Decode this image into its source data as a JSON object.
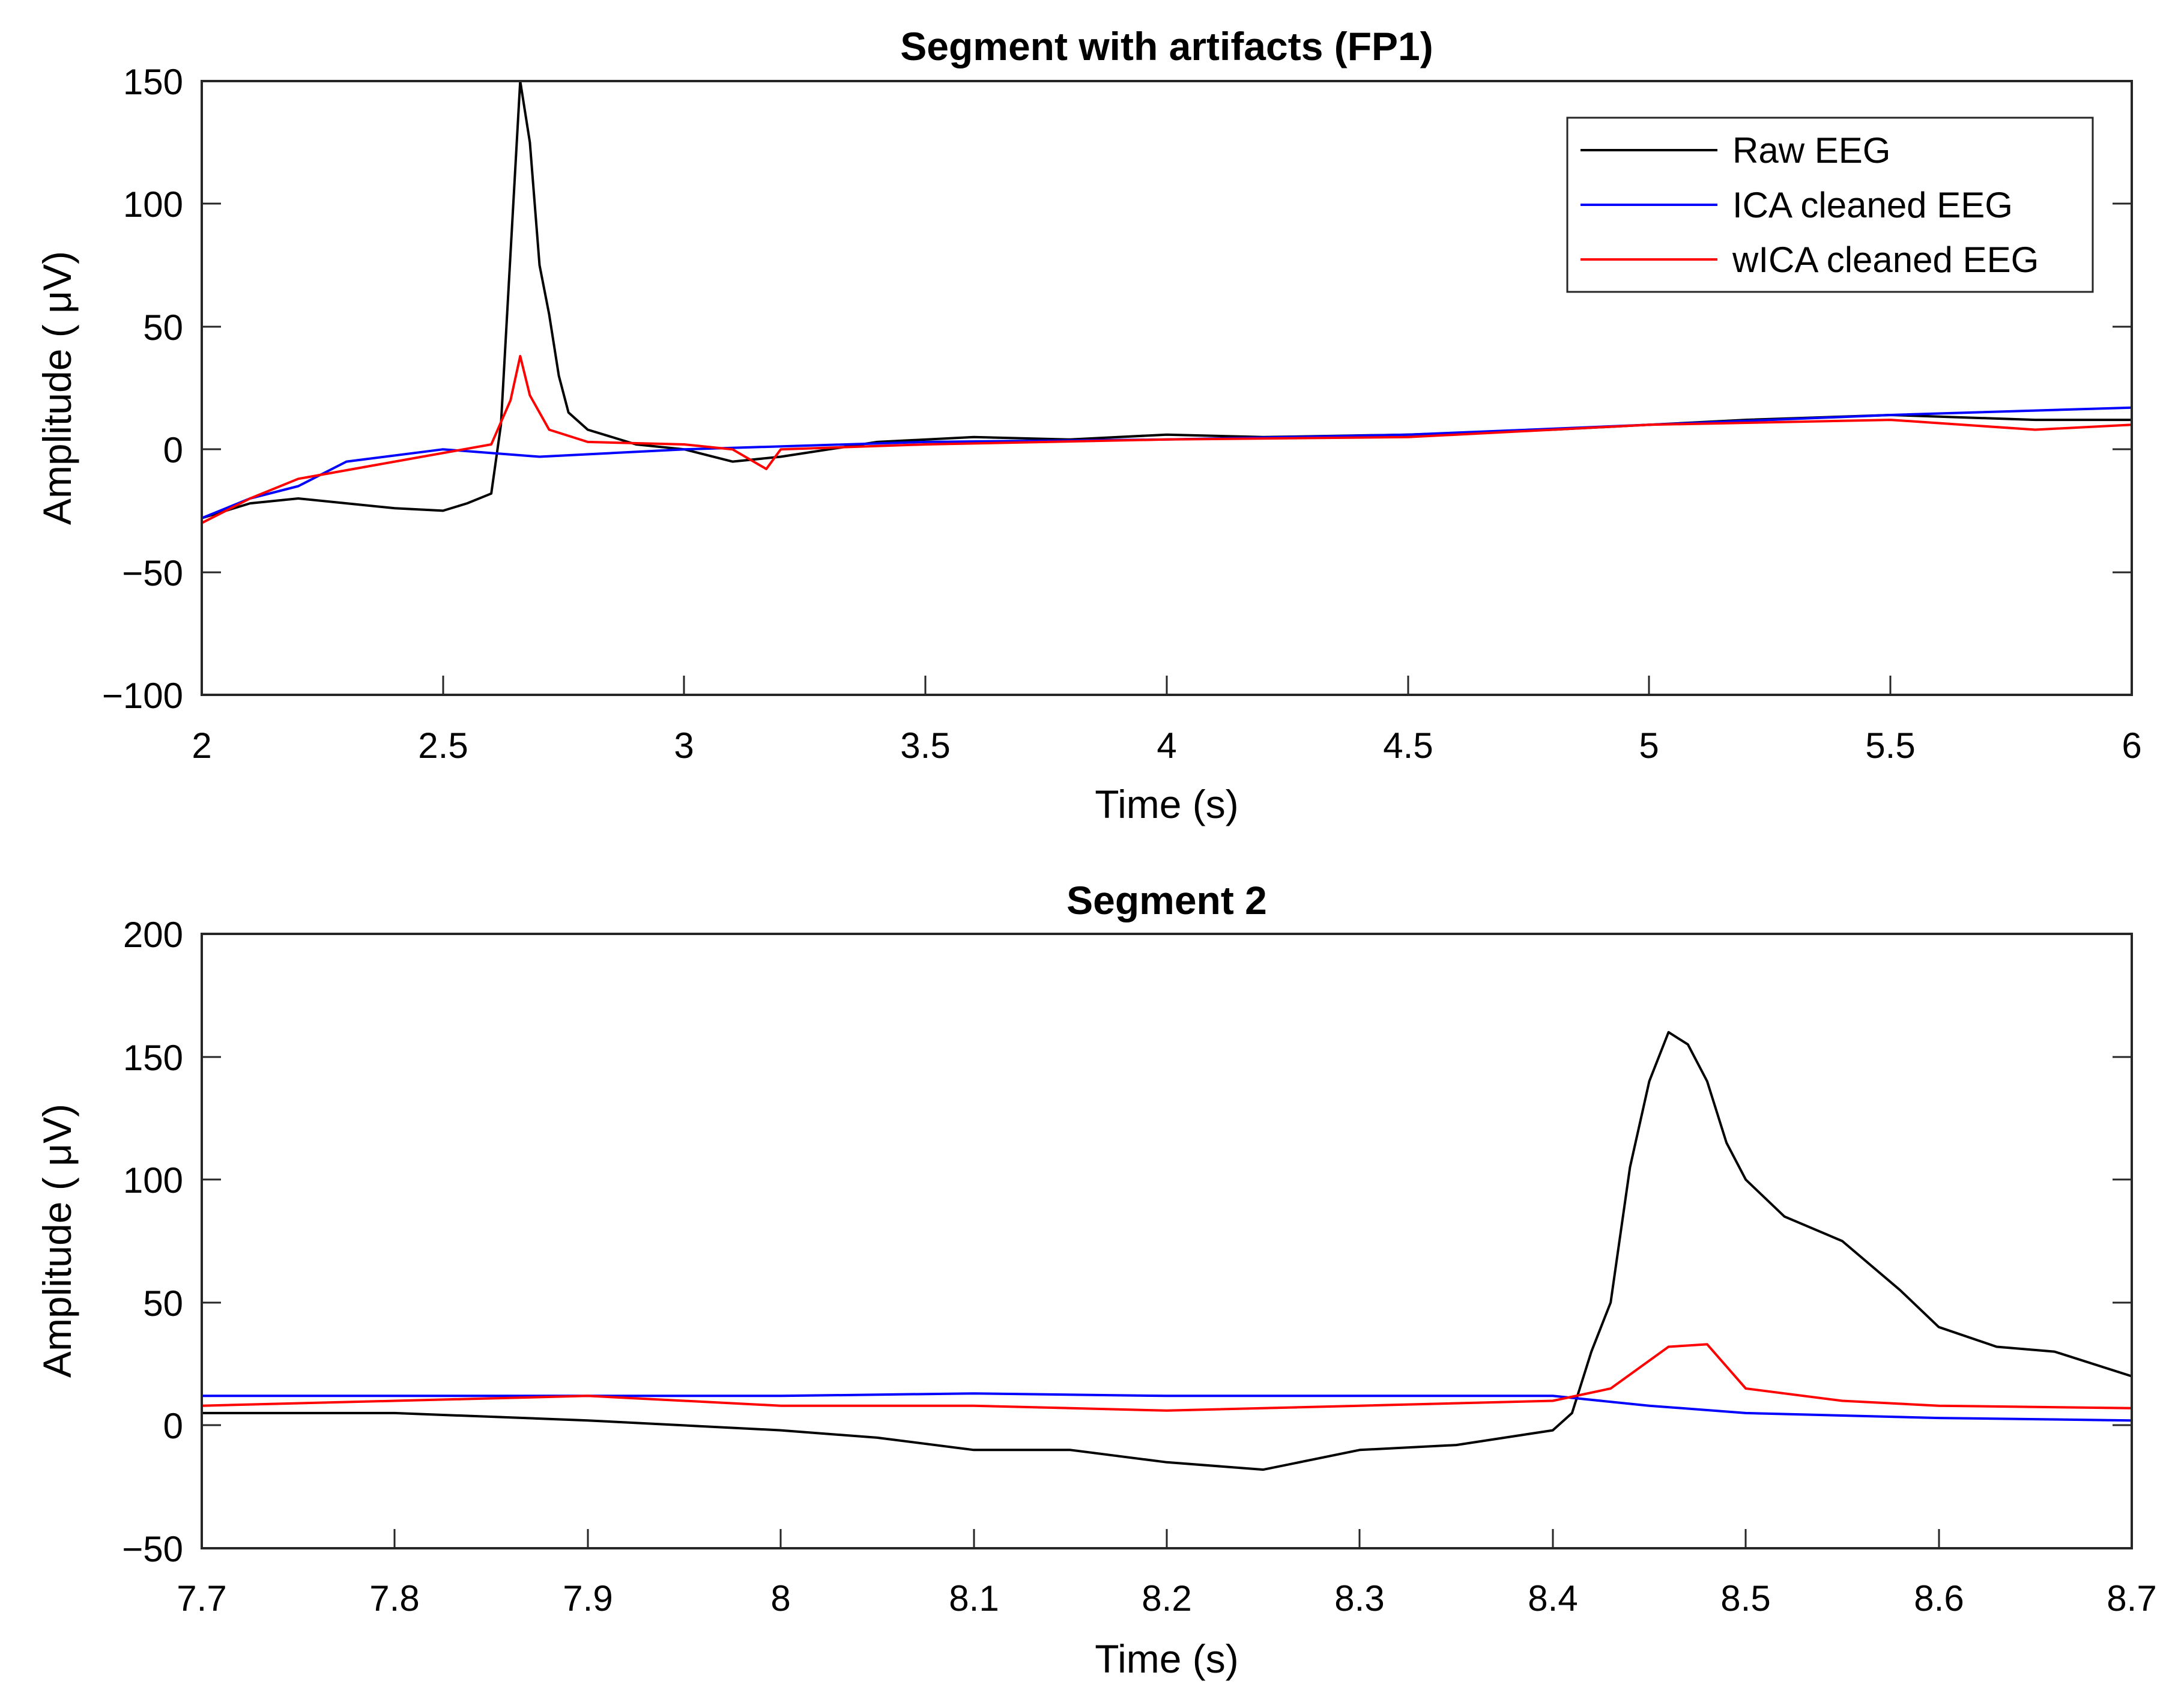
{
  "colors": {
    "raw": "#000000",
    "ica": "#0000ff",
    "wica": "#ff0000"
  },
  "legend": {
    "position": "top-right",
    "entries": [
      {
        "name": "Raw EEG",
        "color": "#000000"
      },
      {
        "name": "ICA cleaned EEG",
        "color": "#0000ff"
      },
      {
        "name": "wICA cleaned EEG",
        "color": "#ff0000"
      }
    ]
  },
  "chart_data": [
    {
      "type": "line",
      "title": "Segment with artifacts (FP1)",
      "xlabel": "Time (s)",
      "ylabel": "Amplitude ( μV)",
      "xlim": [
        2,
        6
      ],
      "ylim": [
        -100,
        150
      ],
      "xticks": [
        "2",
        "2.5",
        "3",
        "3.5",
        "4",
        "4.5",
        "5",
        "5.5",
        "6"
      ],
      "yticks": [
        "150",
        "100",
        "50",
        "0",
        "−50",
        "−100"
      ],
      "series": [
        {
          "name": "Raw EEG",
          "color": "#000000",
          "points": [
            [
              2,
              -28
            ],
            [
              2.1,
              -22
            ],
            [
              2.2,
              -20
            ],
            [
              2.3,
              -22
            ],
            [
              2.4,
              -24
            ],
            [
              2.5,
              -25
            ],
            [
              2.55,
              -22
            ],
            [
              2.6,
              -18
            ],
            [
              2.62,
              10
            ],
            [
              2.64,
              80
            ],
            [
              2.66,
              150
            ],
            [
              2.68,
              125
            ],
            [
              2.7,
              75
            ],
            [
              2.72,
              55
            ],
            [
              2.74,
              30
            ],
            [
              2.76,
              15
            ],
            [
              2.8,
              8
            ],
            [
              2.9,
              2
            ],
            [
              3,
              0
            ],
            [
              3.1,
              -5
            ],
            [
              3.2,
              -3
            ],
            [
              3.4,
              3
            ],
            [
              3.6,
              5
            ],
            [
              3.8,
              4
            ],
            [
              4,
              6
            ],
            [
              4.2,
              5
            ],
            [
              4.5,
              6
            ],
            [
              4.8,
              8
            ],
            [
              5,
              10
            ],
            [
              5.2,
              12
            ],
            [
              5.5,
              14
            ],
            [
              5.8,
              12
            ],
            [
              6,
              12
            ]
          ]
        },
        {
          "name": "ICA cleaned EEG",
          "color": "#0000ff",
          "points": [
            [
              2,
              -28
            ],
            [
              2.1,
              -20
            ],
            [
              2.2,
              -15
            ],
            [
              2.3,
              -5
            ],
            [
              2.5,
              0
            ],
            [
              2.7,
              -3
            ],
            [
              3,
              0
            ],
            [
              3.5,
              3
            ],
            [
              4,
              4
            ],
            [
              4.5,
              6
            ],
            [
              5,
              10
            ],
            [
              5.5,
              14
            ],
            [
              6,
              17
            ]
          ]
        },
        {
          "name": "wICA cleaned EEG",
          "color": "#ff0000",
          "points": [
            [
              2,
              -30
            ],
            [
              2.1,
              -20
            ],
            [
              2.2,
              -12
            ],
            [
              2.4,
              -5
            ],
            [
              2.6,
              2
            ],
            [
              2.64,
              20
            ],
            [
              2.66,
              38
            ],
            [
              2.68,
              22
            ],
            [
              2.72,
              8
            ],
            [
              2.8,
              3
            ],
            [
              3,
              2
            ],
            [
              3.1,
              0
            ],
            [
              3.17,
              -8
            ],
            [
              3.2,
              0
            ],
            [
              3.5,
              2
            ],
            [
              4,
              4
            ],
            [
              4.5,
              5
            ],
            [
              5,
              10
            ],
            [
              5.5,
              12
            ],
            [
              5.8,
              8
            ],
            [
              6,
              10
            ]
          ]
        }
      ]
    },
    {
      "type": "line",
      "title": "Segment 2",
      "xlabel": "Time (s)",
      "ylabel": "Amplitude ( μV)",
      "xlim": [
        7.7,
        8.7
      ],
      "ylim": [
        -50,
        200
      ],
      "xticks": [
        "7.7",
        "7.8",
        "7.9",
        "8",
        "8.1",
        "8.2",
        "8.3",
        "8.4",
        "8.5",
        "8.6",
        "8.7"
      ],
      "yticks": [
        "200",
        "150",
        "100",
        "50",
        "0",
        "−50"
      ],
      "series": [
        {
          "name": "Raw EEG",
          "color": "#000000",
          "points": [
            [
              7.7,
              5
            ],
            [
              7.8,
              5
            ],
            [
              7.9,
              2
            ],
            [
              8,
              -2
            ],
            [
              8.05,
              -5
            ],
            [
              8.1,
              -10
            ],
            [
              8.15,
              -10
            ],
            [
              8.2,
              -15
            ],
            [
              8.25,
              -18
            ],
            [
              8.3,
              -10
            ],
            [
              8.35,
              -8
            ],
            [
              8.4,
              -2
            ],
            [
              8.41,
              5
            ],
            [
              8.42,
              30
            ],
            [
              8.43,
              50
            ],
            [
              8.44,
              105
            ],
            [
              8.45,
              140
            ],
            [
              8.46,
              160
            ],
            [
              8.47,
              155
            ],
            [
              8.48,
              140
            ],
            [
              8.49,
              115
            ],
            [
              8.5,
              100
            ],
            [
              8.52,
              85
            ],
            [
              8.55,
              75
            ],
            [
              8.58,
              55
            ],
            [
              8.6,
              40
            ],
            [
              8.63,
              32
            ],
            [
              8.66,
              30
            ],
            [
              8.7,
              20
            ]
          ]
        },
        {
          "name": "ICA cleaned EEG",
          "color": "#0000ff",
          "points": [
            [
              7.7,
              12
            ],
            [
              7.8,
              12
            ],
            [
              7.9,
              12
            ],
            [
              8,
              12
            ],
            [
              8.1,
              13
            ],
            [
              8.2,
              12
            ],
            [
              8.3,
              12
            ],
            [
              8.4,
              12
            ],
            [
              8.45,
              8
            ],
            [
              8.5,
              5
            ],
            [
              8.6,
              3
            ],
            [
              8.7,
              2
            ]
          ]
        },
        {
          "name": "wICA cleaned EEG",
          "color": "#ff0000",
          "points": [
            [
              7.7,
              8
            ],
            [
              7.8,
              10
            ],
            [
              7.9,
              12
            ],
            [
              8,
              8
            ],
            [
              8.1,
              8
            ],
            [
              8.2,
              6
            ],
            [
              8.3,
              8
            ],
            [
              8.4,
              10
            ],
            [
              8.43,
              15
            ],
            [
              8.46,
              32
            ],
            [
              8.48,
              33
            ],
            [
              8.5,
              15
            ],
            [
              8.55,
              10
            ],
            [
              8.6,
              8
            ],
            [
              8.7,
              7
            ]
          ]
        }
      ]
    }
  ]
}
